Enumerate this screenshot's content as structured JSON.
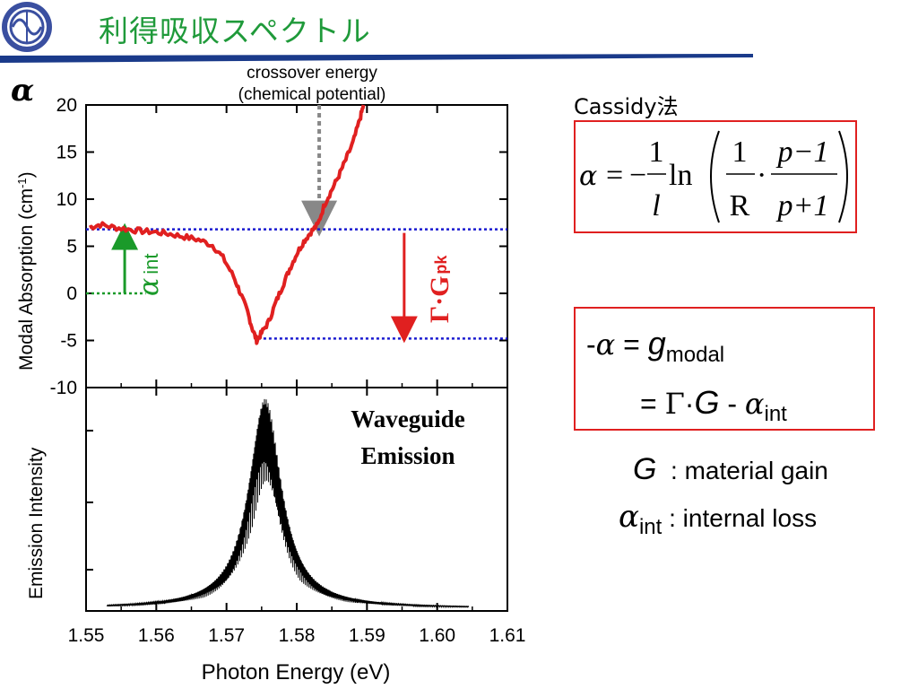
{
  "slide": {
    "title": "利得吸収スペクトル",
    "accent_color": "#1f9a3a",
    "rule_color": "#1a3a8a",
    "logo_icon": "university-emblem-icon"
  },
  "method_label": "Cassidy法",
  "formula": {
    "lhs": "α",
    "eq": "=",
    "minus": "−",
    "frac1_num": "1",
    "frac1_den": "l",
    "ln": "ln",
    "frac2_num": "1",
    "frac2_den": "R",
    "dot": "·",
    "frac3_num": "p−1",
    "frac3_den": "p+1"
  },
  "relation": {
    "line1_prefix": "-",
    "line1_alpha": "α",
    "line1_eq": " = ",
    "line1_g": "g",
    "line1_sub": "modal",
    "line2_eq": "= ",
    "line2_gamma": "Γ",
    "line2_dot": "·",
    "line2_G": "G",
    "line2_minus": " - ",
    "line2_alpha": "α",
    "line2_sub": "int"
  },
  "legend": [
    {
      "symbol": "G",
      "sub": "",
      "text": ": material gain"
    },
    {
      "symbol": "α",
      "sub": "int",
      "text": ": internal loss"
    }
  ],
  "chart_data": [
    {
      "type": "line",
      "ylabel": "Modal Absorption (cm",
      "ylabel_sup": "-1",
      "ylabel_close": ")",
      "axis_symbol": "α",
      "xlim": [
        1.55,
        1.61
      ],
      "ylim": [
        -10,
        20
      ],
      "yticks": [
        20,
        15,
        10,
        5,
        0,
        -5,
        -10
      ],
      "grid": false,
      "series": [
        {
          "color": "#e02020",
          "x": [
            1.5505,
            1.552,
            1.554,
            1.556,
            1.558,
            1.56,
            1.562,
            1.564,
            1.566,
            1.568,
            1.5695,
            1.571,
            1.572,
            1.573,
            1.5737,
            1.5743,
            1.575,
            1.576,
            1.577,
            1.578,
            1.579,
            1.58,
            1.581,
            1.582,
            1.583,
            1.584,
            1.585,
            1.586,
            1.587,
            1.588,
            1.589,
            1.5895
          ],
          "y": [
            7.0,
            7.3,
            7.0,
            6.8,
            6.6,
            6.5,
            6.3,
            6.0,
            5.7,
            5.1,
            3.8,
            1.8,
            0.0,
            -2.0,
            -3.8,
            -5.0,
            -4.2,
            -3.0,
            -1.0,
            0.8,
            2.6,
            4.2,
            5.5,
            6.5,
            7.3,
            9.5,
            11.0,
            12.5,
            14.2,
            16.0,
            18.5,
            20.0
          ]
        }
      ],
      "annotations": {
        "crossover_line1": "crossover energy",
        "crossover_line2": "(chemical potential)",
        "crossover_x": 1.5832,
        "alpha_int_level": 6.8,
        "peak_gain_level": -4.8,
        "alpha_int_label": "α",
        "alpha_int_sub": "int",
        "gamma_g_label": "Γ·G",
        "gamma_g_sub": "pk"
      }
    },
    {
      "type": "line",
      "xlabel": "Photon Energy (eV)",
      "ylabel": "Emission Intensity",
      "xlim": [
        1.55,
        1.61
      ],
      "xticks": [
        1.55,
        1.56,
        1.57,
        1.58,
        1.59,
        1.6,
        1.61
      ],
      "xtick_labels": [
        "1.55",
        "1.56",
        "1.57",
        "1.58",
        "1.59",
        "1.60",
        "1.61"
      ],
      "grid": false,
      "series": [
        {
          "color": "#000000",
          "peak_x": 1.5755,
          "peak_rel": 1.0,
          "x_start": 1.553,
          "x_end": 1.6045
        }
      ],
      "annotations": {
        "label_line1": "Waveguide",
        "label_line2": "Emission"
      }
    }
  ]
}
